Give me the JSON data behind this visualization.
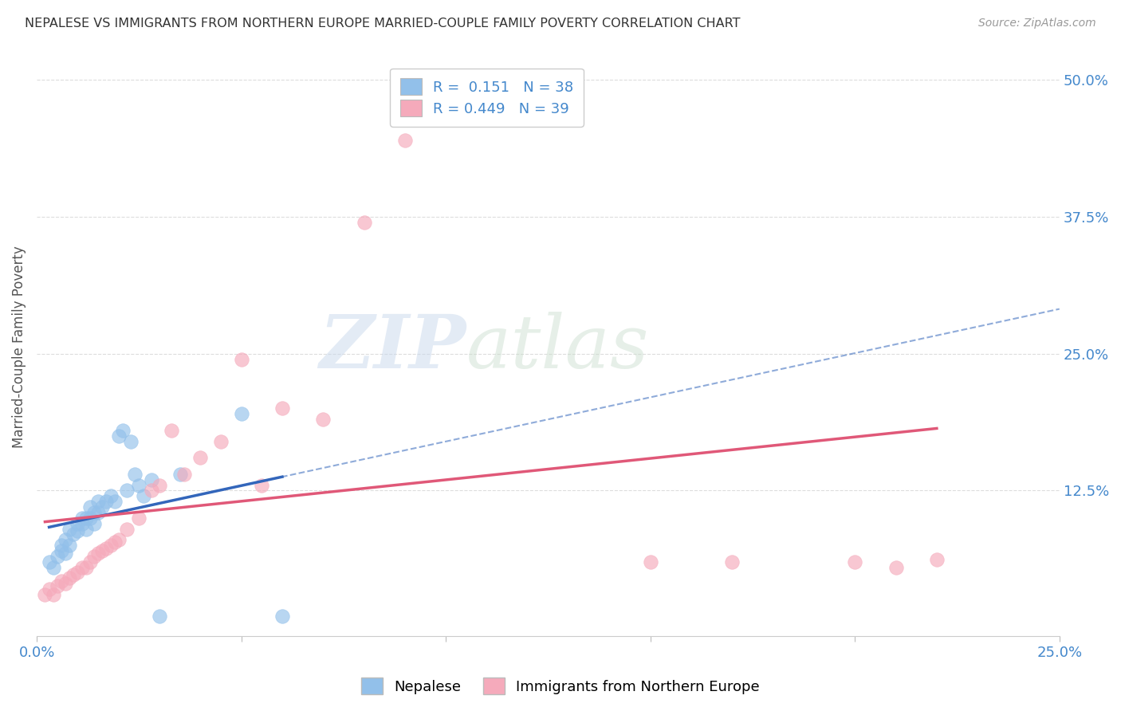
{
  "title": "NEPALESE VS IMMIGRANTS FROM NORTHERN EUROPE MARRIED-COUPLE FAMILY POVERTY CORRELATION CHART",
  "source": "Source: ZipAtlas.com",
  "ylabel": "Married-Couple Family Poverty",
  "xlim": [
    0.0,
    0.25
  ],
  "ylim": [
    -0.008,
    0.52
  ],
  "xticks": [
    0.0,
    0.05,
    0.1,
    0.15,
    0.2,
    0.25
  ],
  "xtick_labels": [
    "0.0%",
    "",
    "",
    "",
    "",
    "25.0%"
  ],
  "ytick_labels": [
    "12.5%",
    "25.0%",
    "37.5%",
    "50.0%"
  ],
  "yticks": [
    0.125,
    0.25,
    0.375,
    0.5
  ],
  "blue_R": "0.151",
  "blue_N": "38",
  "pink_R": "0.449",
  "pink_N": "39",
  "blue_color": "#92C0EA",
  "pink_color": "#F5AABB",
  "blue_line_color": "#3366BB",
  "pink_line_color": "#E05878",
  "legend_label_blue": "Nepalese",
  "legend_label_pink": "Immigrants from Northern Europe",
  "watermark_zip": "ZIP",
  "watermark_atlas": "atlas",
  "blue_scatter_x": [
    0.003,
    0.004,
    0.005,
    0.006,
    0.006,
    0.007,
    0.007,
    0.008,
    0.008,
    0.009,
    0.01,
    0.01,
    0.011,
    0.011,
    0.012,
    0.012,
    0.013,
    0.013,
    0.014,
    0.014,
    0.015,
    0.015,
    0.016,
    0.017,
    0.018,
    0.019,
    0.02,
    0.021,
    0.022,
    0.023,
    0.024,
    0.025,
    0.026,
    0.028,
    0.03,
    0.035,
    0.05,
    0.06
  ],
  "blue_scatter_y": [
    0.06,
    0.055,
    0.065,
    0.07,
    0.075,
    0.068,
    0.08,
    0.075,
    0.09,
    0.085,
    0.088,
    0.095,
    0.095,
    0.1,
    0.09,
    0.1,
    0.1,
    0.11,
    0.095,
    0.105,
    0.105,
    0.115,
    0.11,
    0.115,
    0.12,
    0.115,
    0.175,
    0.18,
    0.125,
    0.17,
    0.14,
    0.13,
    0.12,
    0.135,
    0.01,
    0.14,
    0.195,
    0.01
  ],
  "pink_scatter_x": [
    0.002,
    0.003,
    0.004,
    0.005,
    0.006,
    0.007,
    0.008,
    0.009,
    0.01,
    0.011,
    0.012,
    0.013,
    0.014,
    0.015,
    0.016,
    0.017,
    0.018,
    0.019,
    0.02,
    0.022,
    0.025,
    0.028,
    0.03,
    0.033,
    0.036,
    0.04,
    0.045,
    0.05,
    0.055,
    0.06,
    0.07,
    0.08,
    0.09,
    0.12,
    0.15,
    0.17,
    0.2,
    0.21,
    0.22
  ],
  "pink_scatter_y": [
    0.03,
    0.035,
    0.03,
    0.038,
    0.042,
    0.04,
    0.045,
    0.048,
    0.05,
    0.055,
    0.055,
    0.06,
    0.065,
    0.068,
    0.07,
    0.072,
    0.075,
    0.078,
    0.08,
    0.09,
    0.1,
    0.125,
    0.13,
    0.18,
    0.14,
    0.155,
    0.17,
    0.245,
    0.13,
    0.2,
    0.19,
    0.37,
    0.445,
    0.49,
    0.06,
    0.06,
    0.06,
    0.055,
    0.062
  ],
  "background_color": "#FFFFFF",
  "grid_color": "#DDDDDD",
  "title_color": "#333333",
  "axis_label_color": "#555555"
}
